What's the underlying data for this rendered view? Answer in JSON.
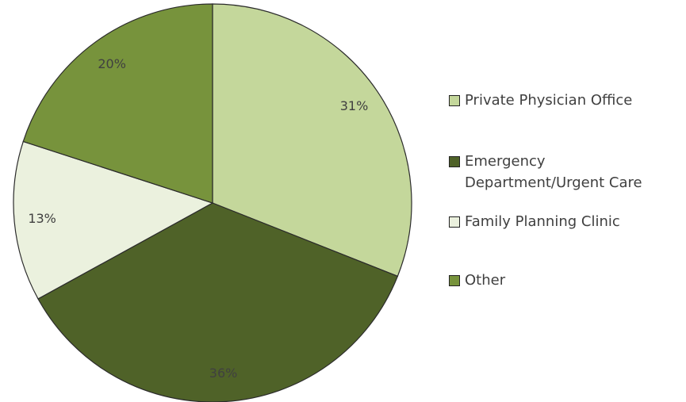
{
  "chart_data": {
    "type": "pie",
    "categories": [
      "Private Physician Office",
      "Emergency Department/Urgent Care",
      "Family Planning Clinic",
      "Other"
    ],
    "values": [
      31,
      36,
      13,
      20
    ],
    "value_labels": [
      "31%",
      "36%",
      "13%",
      "20%"
    ],
    "colors": [
      "#c4d79b",
      "#4f6228",
      "#ebf1de",
      "#77933c"
    ],
    "legend": "right"
  }
}
